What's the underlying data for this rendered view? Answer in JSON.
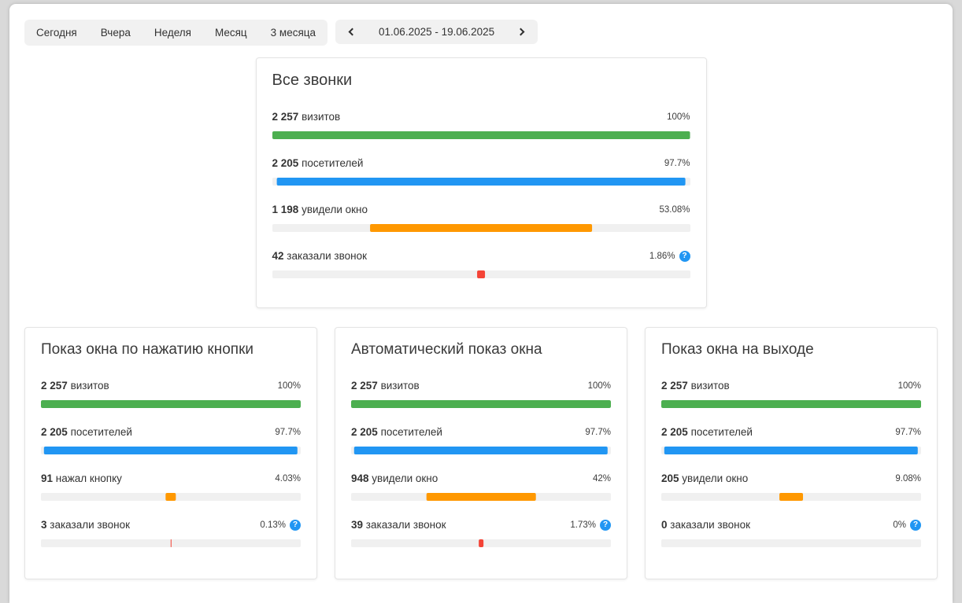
{
  "toolbar": {
    "tabs": [
      "Сегодня",
      "Вчера",
      "Неделя",
      "Месяц",
      "3 месяца"
    ],
    "date_picker": {
      "label": "01.06.2025 - 19.06.2025",
      "prev": "chevron-left",
      "next": "chevron-right"
    }
  },
  "icons": {
    "help_glyph": "?"
  },
  "colors": {
    "green": "#4caf50",
    "blue": "#2196f3",
    "orange": "#ff9800",
    "red": "#f44336",
    "track": "#f0f0f0",
    "help": "#2196f3"
  },
  "cards": [
    {
      "title": "Все звонки",
      "rows": [
        {
          "value": "2 257",
          "label": "визитов",
          "percent": "100%",
          "pct": 100,
          "color": "green"
        },
        {
          "value": "2 205",
          "label": "посетителей",
          "percent": "97.7%",
          "pct": 97.7,
          "color": "blue"
        },
        {
          "value": "1 198",
          "label": "увидели окно",
          "percent": "53.08%",
          "pct": 53.08,
          "color": "orange"
        },
        {
          "value": "42",
          "label": "заказали звонок",
          "percent": "1.86%",
          "pct": 1.86,
          "color": "red",
          "help": true
        }
      ]
    },
    {
      "title": "Показ окна по нажатию кнопки",
      "rows": [
        {
          "value": "2 257",
          "label": "визитов",
          "percent": "100%",
          "pct": 100,
          "color": "green"
        },
        {
          "value": "2 205",
          "label": "посетителей",
          "percent": "97.7%",
          "pct": 97.7,
          "color": "blue"
        },
        {
          "value": "91",
          "label": "нажал кнопку",
          "percent": "4.03%",
          "pct": 4.03,
          "color": "orange"
        },
        {
          "value": "3",
          "label": "заказали звонок",
          "percent": "0.13%",
          "pct": 0.13,
          "color": "red",
          "help": true
        }
      ]
    },
    {
      "title": "Автоматический показ окна",
      "rows": [
        {
          "value": "2 257",
          "label": "визитов",
          "percent": "100%",
          "pct": 100,
          "color": "green"
        },
        {
          "value": "2 205",
          "label": "посетителей",
          "percent": "97.7%",
          "pct": 97.7,
          "color": "blue"
        },
        {
          "value": "948",
          "label": "увидели окно",
          "percent": "42%",
          "pct": 42,
          "color": "orange"
        },
        {
          "value": "39",
          "label": "заказали звонок",
          "percent": "1.73%",
          "pct": 1.73,
          "color": "red",
          "help": true
        }
      ]
    },
    {
      "title": "Показ окна на выходе",
      "rows": [
        {
          "value": "2 257",
          "label": "визитов",
          "percent": "100%",
          "pct": 100,
          "color": "green"
        },
        {
          "value": "2 205",
          "label": "посетителей",
          "percent": "97.7%",
          "pct": 97.7,
          "color": "blue"
        },
        {
          "value": "205",
          "label": "увидели окно",
          "percent": "9.08%",
          "pct": 9.08,
          "color": "orange"
        },
        {
          "value": "0",
          "label": "заказали звонок",
          "percent": "0%",
          "pct": 0,
          "color": "red",
          "help": true
        }
      ]
    }
  ]
}
